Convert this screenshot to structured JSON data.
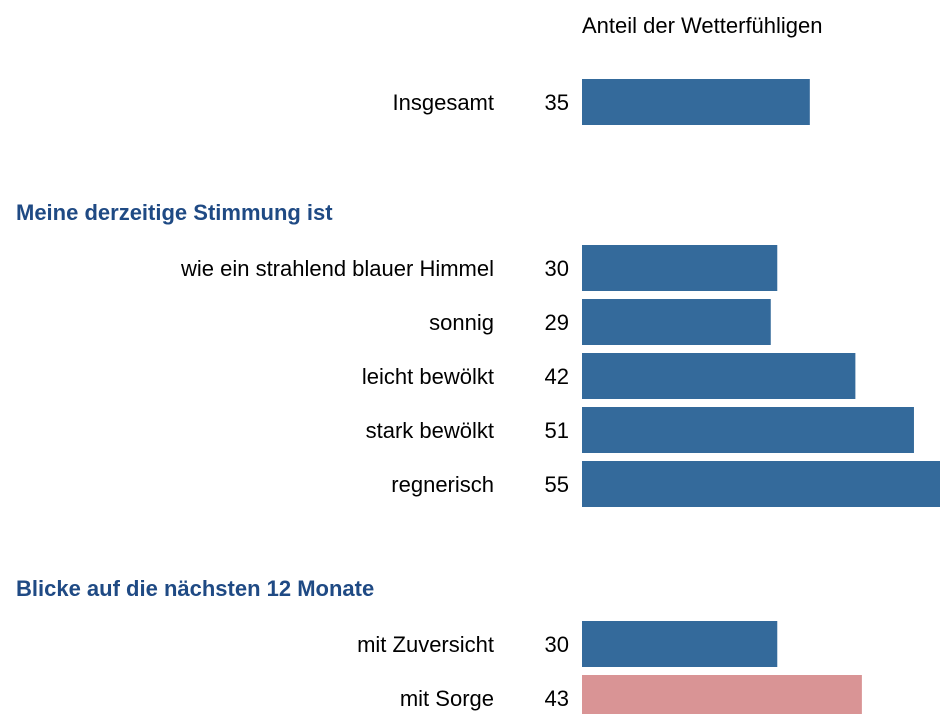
{
  "chart_data": {
    "type": "grouped-hbar",
    "title": "Anteil der Wetterfühligen",
    "xlim": [
      0,
      55
    ],
    "groups": [
      {
        "categories": [
          "Insgesamt"
        ],
        "values": [
          35
        ],
        "colors": [
          "#346a9b"
        ]
      },
      {
        "title": "Meine derzeitige Stimmung ist",
        "categories": [
          "wie ein strahlend blauer Himmel",
          "sonnig",
          "leicht bewölkt",
          "stark bewölkt",
          "regnerisch"
        ],
        "values": [
          30,
          29,
          42,
          51,
          55
        ],
        "colors": [
          "#346a9b",
          "#346a9b",
          "#346a9b",
          "#346a9b",
          "#346a9b"
        ]
      },
      {
        "title": "Blicke auf die nächsten 12 Monate",
        "categories": [
          "mit Zuversicht",
          "mit Sorge"
        ],
        "values": [
          30,
          43
        ],
        "colors": [
          "#346a9b",
          "#d99495"
        ]
      }
    ]
  }
}
